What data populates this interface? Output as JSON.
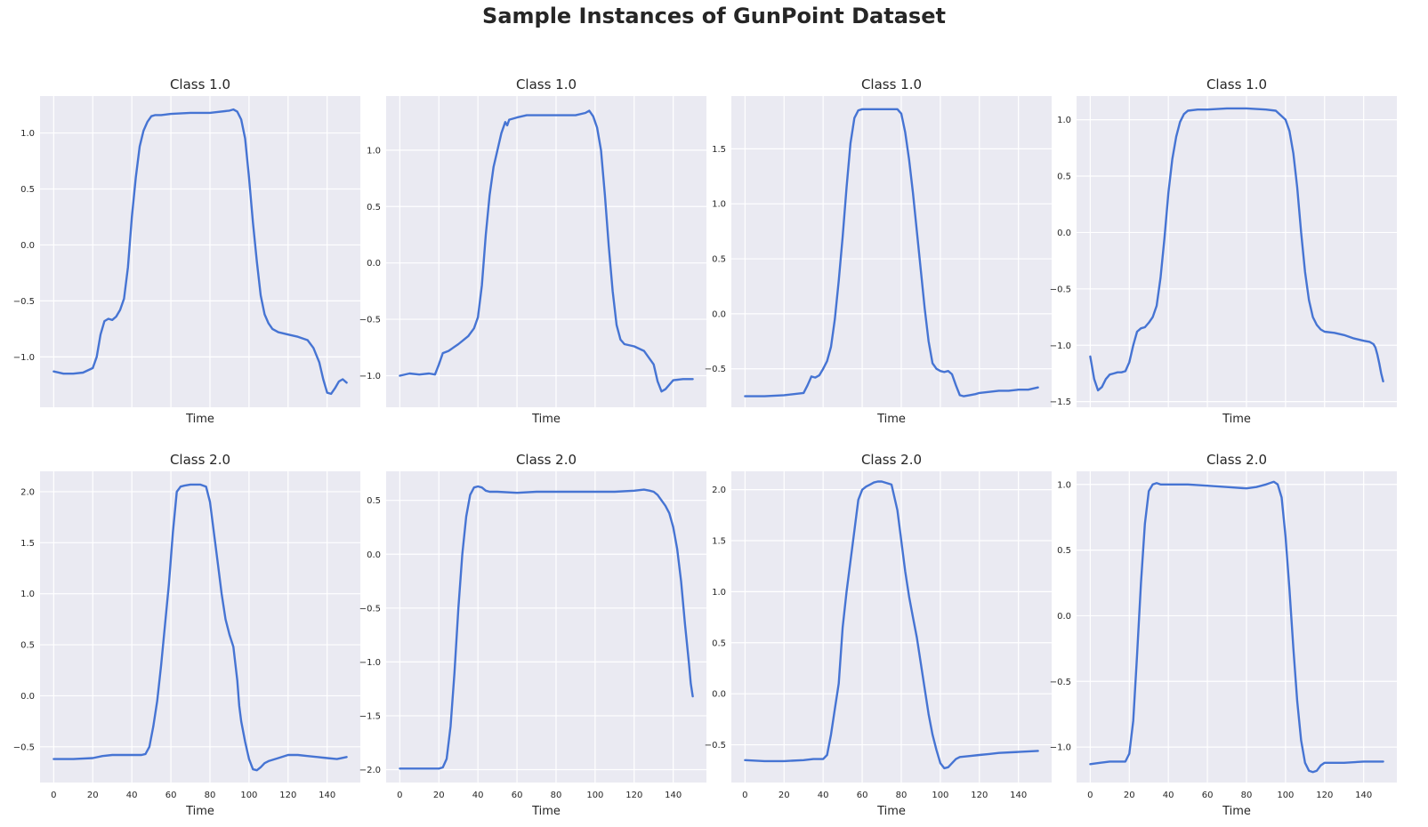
{
  "title": "Sample Instances of GunPoint Dataset",
  "colors": {
    "line": "#4674d3",
    "plot_background": "#eaeaf2",
    "grid": "#ffffff",
    "text": "#262626"
  },
  "chart_data": [
    {
      "type": "line",
      "title": "Class 1.0",
      "xlabel": "Time",
      "ylabel": "",
      "xlim": [
        -7,
        157
      ],
      "ylim": [
        -1.45,
        1.33
      ],
      "xticks": [],
      "yticks": [
        -1.0,
        -0.5,
        0.0,
        0.5,
        1.0
      ],
      "grid": true,
      "xgrid": [
        0,
        20,
        40,
        60,
        80,
        100,
        120,
        140
      ],
      "x": [
        0,
        5,
        10,
        15,
        20,
        22,
        24,
        26,
        28,
        30,
        32,
        34,
        36,
        38,
        40,
        42,
        44,
        46,
        48,
        50,
        52,
        55,
        60,
        70,
        80,
        90,
        92,
        94,
        96,
        98,
        100,
        102,
        104,
        106,
        108,
        110,
        112,
        115,
        120,
        125,
        130,
        133,
        136,
        138,
        140,
        142,
        144,
        146,
        148,
        150
      ],
      "values": [
        -1.13,
        -1.15,
        -1.15,
        -1.14,
        -1.1,
        -1.0,
        -0.8,
        -0.68,
        -0.66,
        -0.67,
        -0.64,
        -0.58,
        -0.48,
        -0.2,
        0.25,
        0.6,
        0.88,
        1.02,
        1.1,
        1.15,
        1.16,
        1.16,
        1.17,
        1.18,
        1.18,
        1.2,
        1.21,
        1.19,
        1.12,
        0.95,
        0.6,
        0.2,
        -0.15,
        -0.45,
        -0.62,
        -0.7,
        -0.75,
        -0.78,
        -0.8,
        -0.82,
        -0.85,
        -0.92,
        -1.05,
        -1.2,
        -1.32,
        -1.33,
        -1.28,
        -1.22,
        -1.2,
        -1.23
      ]
    },
    {
      "type": "line",
      "title": "Class 1.0",
      "xlabel": "Time",
      "ylabel": "",
      "xlim": [
        -7,
        157
      ],
      "ylim": [
        -1.28,
        1.48
      ],
      "xticks": [],
      "yticks": [
        -1.0,
        -0.5,
        0.0,
        0.5,
        1.0
      ],
      "grid": true,
      "xgrid": [
        0,
        20,
        40,
        60,
        80,
        100,
        120,
        140
      ],
      "x": [
        0,
        5,
        10,
        15,
        18,
        20,
        22,
        25,
        30,
        35,
        38,
        40,
        42,
        44,
        46,
        48,
        50,
        52,
        54,
        55,
        56,
        58,
        60,
        65,
        70,
        80,
        90,
        95,
        97,
        99,
        101,
        103,
        105,
        107,
        109,
        111,
        113,
        115,
        120,
        125,
        130,
        132,
        134,
        136,
        138,
        140,
        145,
        150
      ],
      "values": [
        -1.0,
        -0.98,
        -0.99,
        -0.98,
        -0.99,
        -0.9,
        -0.8,
        -0.78,
        -0.72,
        -0.65,
        -0.58,
        -0.48,
        -0.2,
        0.25,
        0.6,
        0.85,
        1.0,
        1.15,
        1.25,
        1.22,
        1.27,
        1.28,
        1.29,
        1.31,
        1.31,
        1.31,
        1.31,
        1.33,
        1.35,
        1.3,
        1.2,
        1.0,
        0.6,
        0.15,
        -0.25,
        -0.55,
        -0.68,
        -0.72,
        -0.74,
        -0.78,
        -0.9,
        -1.05,
        -1.14,
        -1.12,
        -1.08,
        -1.04,
        -1.03,
        -1.03
      ]
    },
    {
      "type": "line",
      "title": "Class 1.0",
      "xlabel": "Time",
      "ylabel": "",
      "xlim": [
        -7,
        157
      ],
      "ylim": [
        -0.85,
        1.98
      ],
      "xticks": [],
      "yticks": [
        -0.5,
        0.0,
        0.5,
        1.0,
        1.5
      ],
      "grid": true,
      "xgrid": [
        0,
        20,
        40,
        60,
        80,
        100,
        120,
        140
      ],
      "x": [
        0,
        10,
        20,
        30,
        32,
        34,
        36,
        38,
        40,
        42,
        44,
        46,
        48,
        50,
        52,
        54,
        56,
        58,
        60,
        62,
        64,
        70,
        78,
        80,
        82,
        84,
        86,
        88,
        90,
        92,
        94,
        96,
        98,
        100,
        102,
        104,
        106,
        108,
        110,
        112,
        115,
        118,
        120,
        125,
        130,
        135,
        140,
        145,
        150
      ],
      "values": [
        -0.75,
        -0.75,
        -0.74,
        -0.72,
        -0.65,
        -0.57,
        -0.58,
        -0.56,
        -0.5,
        -0.43,
        -0.3,
        -0.05,
        0.3,
        0.7,
        1.15,
        1.55,
        1.78,
        1.85,
        1.86,
        1.86,
        1.86,
        1.86,
        1.86,
        1.82,
        1.65,
        1.4,
        1.1,
        0.75,
        0.4,
        0.05,
        -0.25,
        -0.45,
        -0.5,
        -0.52,
        -0.53,
        -0.52,
        -0.55,
        -0.65,
        -0.74,
        -0.75,
        -0.74,
        -0.73,
        -0.72,
        -0.71,
        -0.7,
        -0.7,
        -0.69,
        -0.69,
        -0.67
      ]
    },
    {
      "type": "line",
      "title": "Class 1.0",
      "xlabel": "Time",
      "ylabel": "",
      "xlim": [
        -7,
        157
      ],
      "ylim": [
        -1.55,
        1.21
      ],
      "xticks": [],
      "yticks": [
        -1.5,
        -1.0,
        -0.5,
        0.0,
        0.5,
        1.0
      ],
      "grid": true,
      "xgrid": [
        0,
        20,
        40,
        60,
        80,
        100,
        120,
        140
      ],
      "x": [
        0,
        2,
        4,
        6,
        8,
        10,
        12,
        14,
        16,
        18,
        20,
        22,
        24,
        26,
        28,
        30,
        32,
        34,
        36,
        38,
        40,
        42,
        44,
        46,
        48,
        50,
        55,
        60,
        70,
        80,
        90,
        95,
        100,
        102,
        104,
        106,
        108,
        110,
        112,
        114,
        116,
        118,
        120,
        125,
        130,
        135,
        140,
        143,
        145,
        146,
        147,
        148,
        149,
        150
      ],
      "values": [
        -1.1,
        -1.3,
        -1.4,
        -1.37,
        -1.3,
        -1.26,
        -1.25,
        -1.24,
        -1.24,
        -1.23,
        -1.15,
        -1.0,
        -0.88,
        -0.85,
        -0.84,
        -0.8,
        -0.75,
        -0.65,
        -0.4,
        -0.05,
        0.35,
        0.65,
        0.85,
        0.98,
        1.05,
        1.08,
        1.09,
        1.09,
        1.1,
        1.1,
        1.09,
        1.08,
        1.0,
        0.9,
        0.7,
        0.4,
        0.0,
        -0.35,
        -0.6,
        -0.75,
        -0.82,
        -0.86,
        -0.88,
        -0.89,
        -0.91,
        -0.94,
        -0.96,
        -0.97,
        -0.99,
        -1.02,
        -1.08,
        -1.16,
        -1.25,
        -1.32
      ]
    },
    {
      "type": "line",
      "title": "Class 2.0",
      "xlabel": "Time",
      "ylabel": "",
      "xlim": [
        -7,
        157
      ],
      "ylim": [
        -0.85,
        2.2
      ],
      "xticks": [
        0,
        20,
        40,
        60,
        80,
        100,
        120,
        140
      ],
      "yticks": [
        -0.5,
        0.0,
        0.5,
        1.0,
        1.5,
        2.0
      ],
      "grid": true,
      "x": [
        0,
        10,
        20,
        25,
        30,
        40,
        45,
        47,
        49,
        51,
        53,
        55,
        57,
        59,
        61,
        63,
        65,
        67,
        70,
        75,
        78,
        80,
        82,
        84,
        86,
        88,
        90,
        92,
        94,
        95,
        96,
        98,
        100,
        102,
        104,
        106,
        108,
        110,
        115,
        120,
        125,
        130,
        135,
        140,
        145,
        150
      ],
      "values": [
        -0.62,
        -0.62,
        -0.61,
        -0.59,
        -0.58,
        -0.58,
        -0.58,
        -0.57,
        -0.5,
        -0.3,
        -0.05,
        0.3,
        0.7,
        1.1,
        1.6,
        2.0,
        2.05,
        2.06,
        2.07,
        2.07,
        2.05,
        1.9,
        1.6,
        1.3,
        1.0,
        0.75,
        0.6,
        0.48,
        0.15,
        -0.1,
        -0.25,
        -0.45,
        -0.62,
        -0.72,
        -0.73,
        -0.7,
        -0.66,
        -0.64,
        -0.61,
        -0.58,
        -0.58,
        -0.59,
        -0.6,
        -0.61,
        -0.62,
        -0.6
      ]
    },
    {
      "type": "line",
      "title": "Class 2.0",
      "xlabel": "Time",
      "ylabel": "",
      "xlim": [
        -7,
        157
      ],
      "ylim": [
        -2.12,
        0.77
      ],
      "xticks": [
        0,
        20,
        40,
        60,
        80,
        100,
        120,
        140
      ],
      "yticks": [
        -2.0,
        -1.5,
        -1.0,
        -0.5,
        0.0,
        0.5
      ],
      "grid": true,
      "x": [
        0,
        10,
        20,
        22,
        24,
        26,
        28,
        30,
        32,
        34,
        36,
        38,
        40,
        42,
        44,
        46,
        50,
        60,
        70,
        80,
        90,
        100,
        110,
        120,
        125,
        128,
        130,
        132,
        134,
        136,
        138,
        140,
        142,
        144,
        146,
        148,
        149,
        150
      ],
      "values": [
        -1.99,
        -1.99,
        -1.99,
        -1.98,
        -1.9,
        -1.6,
        -1.1,
        -0.5,
        0.0,
        0.35,
        0.55,
        0.62,
        0.63,
        0.62,
        0.59,
        0.58,
        0.58,
        0.57,
        0.58,
        0.58,
        0.58,
        0.58,
        0.58,
        0.59,
        0.6,
        0.59,
        0.58,
        0.55,
        0.5,
        0.45,
        0.38,
        0.25,
        0.05,
        -0.25,
        -0.65,
        -1.0,
        -1.2,
        -1.32
      ]
    },
    {
      "type": "line",
      "title": "Class 2.0",
      "xlabel": "Time",
      "ylabel": "",
      "xlim": [
        -7,
        157
      ],
      "ylim": [
        -0.87,
        2.18
      ],
      "xticks": [
        0,
        20,
        40,
        60,
        80,
        100,
        120,
        140
      ],
      "yticks": [
        -0.5,
        0.0,
        0.5,
        1.0,
        1.5,
        2.0
      ],
      "grid": true,
      "x": [
        0,
        10,
        20,
        30,
        35,
        40,
        42,
        44,
        46,
        48,
        50,
        52,
        54,
        56,
        58,
        60,
        62,
        64,
        66,
        68,
        70,
        75,
        78,
        80,
        82,
        84,
        86,
        88,
        90,
        92,
        94,
        96,
        98,
        100,
        102,
        104,
        106,
        108,
        110,
        115,
        120,
        125,
        130,
        140,
        150
      ],
      "values": [
        -0.65,
        -0.66,
        -0.66,
        -0.65,
        -0.64,
        -0.64,
        -0.6,
        -0.4,
        -0.15,
        0.1,
        0.65,
        1.0,
        1.3,
        1.6,
        1.9,
        2.0,
        2.03,
        2.05,
        2.07,
        2.08,
        2.08,
        2.05,
        1.8,
        1.5,
        1.2,
        0.95,
        0.75,
        0.55,
        0.3,
        0.05,
        -0.2,
        -0.4,
        -0.55,
        -0.68,
        -0.73,
        -0.72,
        -0.68,
        -0.64,
        -0.62,
        -0.61,
        -0.6,
        -0.59,
        -0.58,
        -0.57,
        -0.56
      ]
    },
    {
      "type": "line",
      "title": "Class 2.0",
      "xlabel": "Time",
      "ylabel": "",
      "xlim": [
        -7,
        157
      ],
      "ylim": [
        -1.27,
        1.1
      ],
      "xticks": [
        0,
        20,
        40,
        60,
        80,
        100,
        120,
        140
      ],
      "yticks": [
        -1.0,
        -0.5,
        0.0,
        0.5,
        1.0
      ],
      "grid": true,
      "x": [
        0,
        5,
        10,
        15,
        18,
        20,
        22,
        24,
        26,
        28,
        30,
        32,
        34,
        36,
        40,
        50,
        60,
        70,
        80,
        85,
        90,
        94,
        96,
        98,
        100,
        102,
        104,
        106,
        108,
        110,
        112,
        114,
        116,
        118,
        120,
        125,
        130,
        140,
        150
      ],
      "values": [
        -1.13,
        -1.12,
        -1.11,
        -1.11,
        -1.11,
        -1.05,
        -0.8,
        -0.3,
        0.25,
        0.7,
        0.95,
        1.0,
        1.01,
        1.0,
        1.0,
        1.0,
        0.99,
        0.98,
        0.97,
        0.98,
        1.0,
        1.02,
        1.0,
        0.9,
        0.6,
        0.2,
        -0.25,
        -0.65,
        -0.95,
        -1.12,
        -1.18,
        -1.19,
        -1.18,
        -1.14,
        -1.12,
        -1.12,
        -1.12,
        -1.11,
        -1.11
      ]
    }
  ]
}
